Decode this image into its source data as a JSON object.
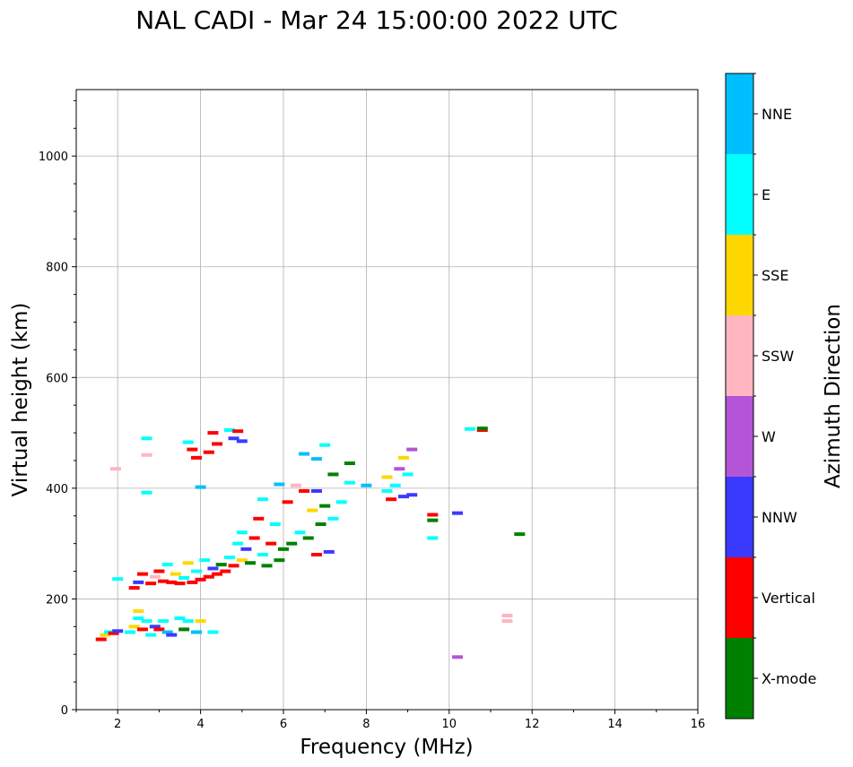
{
  "chart_data": {
    "type": "scatter",
    "title": "NAL CADI - Mar 24 15:00:00 2022 UTC",
    "xlabel": "Frequency (MHz)",
    "ylabel": "Virtual height (km)",
    "xlim": [
      1,
      16
    ],
    "ylim": [
      0,
      1120
    ],
    "xticks": [
      2,
      4,
      6,
      8,
      10,
      12,
      14,
      16
    ],
    "yticks": [
      0,
      200,
      400,
      600,
      800,
      1000
    ],
    "grid": true,
    "colorbar": {
      "title": "Azimuth Direction",
      "categories": [
        {
          "name": "X-mode",
          "color": "#008000"
        },
        {
          "name": "Vertical",
          "color": "#ff0000"
        },
        {
          "name": "NNW",
          "color": "#3a3aff"
        },
        {
          "name": "W",
          "color": "#b355d6"
        },
        {
          "name": "SSW",
          "color": "#ffb6c1"
        },
        {
          "name": "SSE",
          "color": "#ffd700"
        },
        {
          "name": "E",
          "color": "#00ffff"
        },
        {
          "name": "NNE",
          "color": "#00bfff"
        }
      ]
    },
    "points": [
      {
        "f": 1.6,
        "h": 127,
        "c": "Vertical"
      },
      {
        "f": 1.7,
        "h": 135,
        "c": "SSE"
      },
      {
        "f": 1.8,
        "h": 140,
        "c": "E"
      },
      {
        "f": 1.9,
        "h": 138,
        "c": "Vertical"
      },
      {
        "f": 2.0,
        "h": 142,
        "c": "NNW"
      },
      {
        "f": 2.0,
        "h": 236,
        "c": "E"
      },
      {
        "f": 1.95,
        "h": 435,
        "c": "SSW"
      },
      {
        "f": 2.3,
        "h": 140,
        "c": "E"
      },
      {
        "f": 2.4,
        "h": 150,
        "c": "SSE"
      },
      {
        "f": 2.5,
        "h": 165,
        "c": "E"
      },
      {
        "f": 2.5,
        "h": 178,
        "c": "SSE"
      },
      {
        "f": 2.6,
        "h": 145,
        "c": "Vertical"
      },
      {
        "f": 2.7,
        "h": 160,
        "c": "E"
      },
      {
        "f": 2.8,
        "h": 135,
        "c": "E"
      },
      {
        "f": 2.9,
        "h": 150,
        "c": "NNW"
      },
      {
        "f": 3.0,
        "h": 145,
        "c": "Vertical"
      },
      {
        "f": 3.1,
        "h": 160,
        "c": "E"
      },
      {
        "f": 3.2,
        "h": 140,
        "c": "NNE"
      },
      {
        "f": 3.3,
        "h": 135,
        "c": "NNW"
      },
      {
        "f": 3.5,
        "h": 165,
        "c": "E"
      },
      {
        "f": 3.6,
        "h": 145,
        "c": "X-mode"
      },
      {
        "f": 3.7,
        "h": 160,
        "c": "E"
      },
      {
        "f": 3.9,
        "h": 140,
        "c": "NNE"
      },
      {
        "f": 4.0,
        "h": 160,
        "c": "SSE"
      },
      {
        "f": 4.3,
        "h": 140,
        "c": "E"
      },
      {
        "f": 2.4,
        "h": 220,
        "c": "Vertical"
      },
      {
        "f": 2.5,
        "h": 230,
        "c": "NNW"
      },
      {
        "f": 2.6,
        "h": 245,
        "c": "Vertical"
      },
      {
        "f": 2.8,
        "h": 228,
        "c": "Vertical"
      },
      {
        "f": 2.9,
        "h": 240,
        "c": "SSW"
      },
      {
        "f": 3.0,
        "h": 250,
        "c": "Vertical"
      },
      {
        "f": 3.1,
        "h": 232,
        "c": "Vertical"
      },
      {
        "f": 3.2,
        "h": 262,
        "c": "E"
      },
      {
        "f": 3.3,
        "h": 230,
        "c": "Vertical"
      },
      {
        "f": 3.4,
        "h": 245,
        "c": "SSE"
      },
      {
        "f": 3.5,
        "h": 228,
        "c": "Vertical"
      },
      {
        "f": 3.6,
        "h": 238,
        "c": "E"
      },
      {
        "f": 3.7,
        "h": 265,
        "c": "SSE"
      },
      {
        "f": 3.8,
        "h": 230,
        "c": "Vertical"
      },
      {
        "f": 3.9,
        "h": 250,
        "c": "E"
      },
      {
        "f": 4.0,
        "h": 235,
        "c": "Vertical"
      },
      {
        "f": 4.1,
        "h": 270,
        "c": "E"
      },
      {
        "f": 4.2,
        "h": 240,
        "c": "Vertical"
      },
      {
        "f": 4.3,
        "h": 255,
        "c": "NNW"
      },
      {
        "f": 4.4,
        "h": 245,
        "c": "Vertical"
      },
      {
        "f": 4.5,
        "h": 262,
        "c": "X-mode"
      },
      {
        "f": 4.6,
        "h": 250,
        "c": "Vertical"
      },
      {
        "f": 4.7,
        "h": 275,
        "c": "E"
      },
      {
        "f": 4.8,
        "h": 260,
        "c": "Vertical"
      },
      {
        "f": 4.9,
        "h": 300,
        "c": "E"
      },
      {
        "f": 5.0,
        "h": 270,
        "c": "SSE"
      },
      {
        "f": 5.0,
        "h": 320,
        "c": "E"
      },
      {
        "f": 5.1,
        "h": 290,
        "c": "NNW"
      },
      {
        "f": 5.2,
        "h": 265,
        "c": "X-mode"
      },
      {
        "f": 5.3,
        "h": 310,
        "c": "Vertical"
      },
      {
        "f": 5.4,
        "h": 345,
        "c": "Vertical"
      },
      {
        "f": 5.5,
        "h": 280,
        "c": "E"
      },
      {
        "f": 5.5,
        "h": 380,
        "c": "E"
      },
      {
        "f": 5.6,
        "h": 260,
        "c": "X-mode"
      },
      {
        "f": 5.7,
        "h": 300,
        "c": "Vertical"
      },
      {
        "f": 5.8,
        "h": 335,
        "c": "E"
      },
      {
        "f": 5.9,
        "h": 270,
        "c": "X-mode"
      },
      {
        "f": 6.0,
        "h": 290,
        "c": "X-mode"
      },
      {
        "f": 6.1,
        "h": 375,
        "c": "Vertical"
      },
      {
        "f": 6.2,
        "h": 300,
        "c": "X-mode"
      },
      {
        "f": 6.4,
        "h": 320,
        "c": "E"
      },
      {
        "f": 6.5,
        "h": 395,
        "c": "Vertical"
      },
      {
        "f": 6.6,
        "h": 310,
        "c": "X-mode"
      },
      {
        "f": 6.7,
        "h": 360,
        "c": "SSE"
      },
      {
        "f": 6.8,
        "h": 280,
        "c": "Vertical"
      },
      {
        "f": 6.9,
        "h": 335,
        "c": "X-mode"
      },
      {
        "f": 7.0,
        "h": 368,
        "c": "X-mode"
      },
      {
        "f": 7.1,
        "h": 285,
        "c": "NNW"
      },
      {
        "f": 7.2,
        "h": 345,
        "c": "E"
      },
      {
        "f": 7.2,
        "h": 425,
        "c": "X-mode"
      },
      {
        "f": 7.4,
        "h": 375,
        "c": "E"
      },
      {
        "f": 7.6,
        "h": 410,
        "c": "E"
      },
      {
        "f": 7.6,
        "h": 445,
        "c": "X-mode"
      },
      {
        "f": 8.0,
        "h": 405,
        "c": "NNE"
      },
      {
        "f": 8.5,
        "h": 395,
        "c": "E"
      },
      {
        "f": 8.5,
        "h": 420,
        "c": "SSE"
      },
      {
        "f": 8.6,
        "h": 380,
        "c": "Vertical"
      },
      {
        "f": 8.7,
        "h": 405,
        "c": "E"
      },
      {
        "f": 8.8,
        "h": 435,
        "c": "W"
      },
      {
        "f": 8.9,
        "h": 385,
        "c": "NNW"
      },
      {
        "f": 8.9,
        "h": 455,
        "c": "SSE"
      },
      {
        "f": 9.0,
        "h": 425,
        "c": "E"
      },
      {
        "f": 9.1,
        "h": 470,
        "c": "W"
      },
      {
        "f": 9.1,
        "h": 388,
        "c": "NNW"
      },
      {
        "f": 9.6,
        "h": 352,
        "c": "Vertical"
      },
      {
        "f": 9.6,
        "h": 342,
        "c": "X-mode"
      },
      {
        "f": 9.6,
        "h": 310,
        "c": "E"
      },
      {
        "f": 10.2,
        "h": 355,
        "c": "NNW"
      },
      {
        "f": 10.2,
        "h": 95,
        "c": "W"
      },
      {
        "f": 10.5,
        "h": 507,
        "c": "E"
      },
      {
        "f": 10.8,
        "h": 505,
        "c": "Vertical"
      },
      {
        "f": 10.8,
        "h": 508,
        "c": "X-mode"
      },
      {
        "f": 11.4,
        "h": 170,
        "c": "SSW"
      },
      {
        "f": 11.4,
        "h": 160,
        "c": "SSW"
      },
      {
        "f": 11.7,
        "h": 317,
        "c": "X-mode"
      },
      {
        "f": 2.7,
        "h": 490,
        "c": "E"
      },
      {
        "f": 2.7,
        "h": 460,
        "c": "SSW"
      },
      {
        "f": 2.7,
        "h": 392,
        "c": "E"
      },
      {
        "f": 3.7,
        "h": 483,
        "c": "E"
      },
      {
        "f": 3.8,
        "h": 470,
        "c": "Vertical"
      },
      {
        "f": 3.9,
        "h": 455,
        "c": "Vertical"
      },
      {
        "f": 4.0,
        "h": 402,
        "c": "NNE"
      },
      {
        "f": 4.2,
        "h": 465,
        "c": "Vertical"
      },
      {
        "f": 4.3,
        "h": 500,
        "c": "Vertical"
      },
      {
        "f": 4.4,
        "h": 480,
        "c": "Vertical"
      },
      {
        "f": 4.7,
        "h": 505,
        "c": "E"
      },
      {
        "f": 4.8,
        "h": 490,
        "c": "NNW"
      },
      {
        "f": 4.9,
        "h": 503,
        "c": "Vertical"
      },
      {
        "f": 5.0,
        "h": 485,
        "c": "NNW"
      },
      {
        "f": 6.5,
        "h": 462,
        "c": "NNE"
      },
      {
        "f": 6.8,
        "h": 453,
        "c": "NNE"
      },
      {
        "f": 7.0,
        "h": 478,
        "c": "E"
      },
      {
        "f": 6.3,
        "h": 405,
        "c": "SSW"
      },
      {
        "f": 6.8,
        "h": 395,
        "c": "NNW"
      },
      {
        "f": 5.9,
        "h": 407,
        "c": "NNE"
      }
    ]
  }
}
